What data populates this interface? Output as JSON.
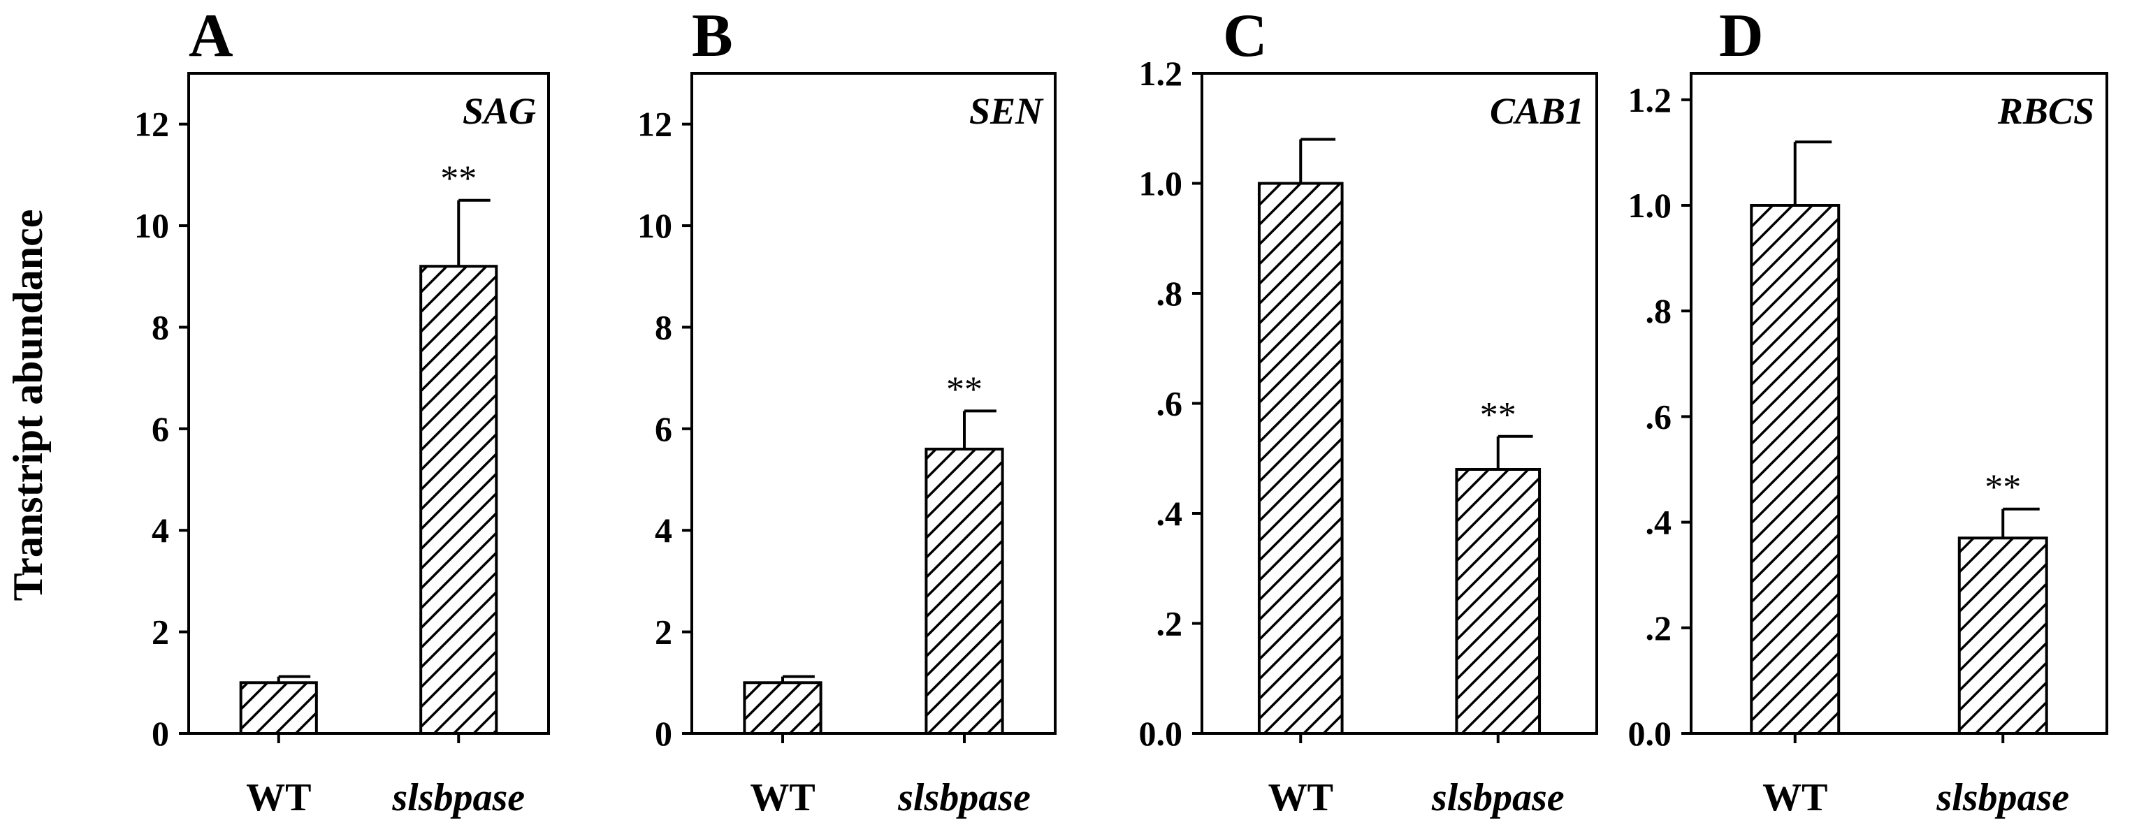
{
  "figure": {
    "ylabel": "Transtript abundance"
  },
  "chart_data": [
    {
      "type": "bar",
      "panel": "A",
      "title": "SAG",
      "categories": [
        "WT",
        "slsbpase"
      ],
      "values": [
        1.0,
        9.2
      ],
      "errors": [
        0.12,
        1.3
      ],
      "significance": [
        "",
        "**"
      ],
      "ylim": [
        0,
        13
      ],
      "yticks": [
        0,
        2,
        4,
        6,
        8,
        10,
        12
      ],
      "ytick_labels": [
        "0",
        "2",
        "4",
        "6",
        "8",
        "10",
        "12"
      ],
      "xlabel": "",
      "ylabel": "Transtript abundance"
    },
    {
      "type": "bar",
      "panel": "B",
      "title": "SEN",
      "categories": [
        "WT",
        "slsbpase"
      ],
      "values": [
        1.0,
        5.6
      ],
      "errors": [
        0.12,
        0.75
      ],
      "significance": [
        "",
        "**"
      ],
      "ylim": [
        0,
        13
      ],
      "yticks": [
        0,
        2,
        4,
        6,
        8,
        10,
        12
      ],
      "ytick_labels": [
        "0",
        "2",
        "4",
        "6",
        "8",
        "10",
        "12"
      ],
      "xlabel": "",
      "ylabel": ""
    },
    {
      "type": "bar",
      "panel": "C",
      "title": "CAB1",
      "categories": [
        "WT",
        "slsbpase"
      ],
      "values": [
        1.0,
        0.48
      ],
      "errors": [
        0.08,
        0.06
      ],
      "significance": [
        "",
        "**"
      ],
      "ylim": [
        0,
        1.2
      ],
      "yticks": [
        0,
        0.2,
        0.4,
        0.6,
        0.8,
        1.0,
        1.2
      ],
      "ytick_labels": [
        "0.0",
        ".2",
        ".4",
        ".6",
        ".8",
        "1.0",
        "1.2"
      ],
      "xlabel": "",
      "ylabel": ""
    },
    {
      "type": "bar",
      "panel": "D",
      "title": "RBCS",
      "categories": [
        "WT",
        "slsbpase"
      ],
      "values": [
        1.0,
        0.37
      ],
      "errors": [
        0.12,
        0.055
      ],
      "significance": [
        "",
        "**"
      ],
      "ylim": [
        0,
        1.25
      ],
      "yticks": [
        0,
        0.2,
        0.4,
        0.6,
        0.8,
        1.0,
        1.2
      ],
      "ytick_labels": [
        "0.0",
        ".2",
        ".4",
        ".6",
        ".8",
        "1.0",
        "1.2"
      ],
      "xlabel": "",
      "ylabel": ""
    }
  ]
}
